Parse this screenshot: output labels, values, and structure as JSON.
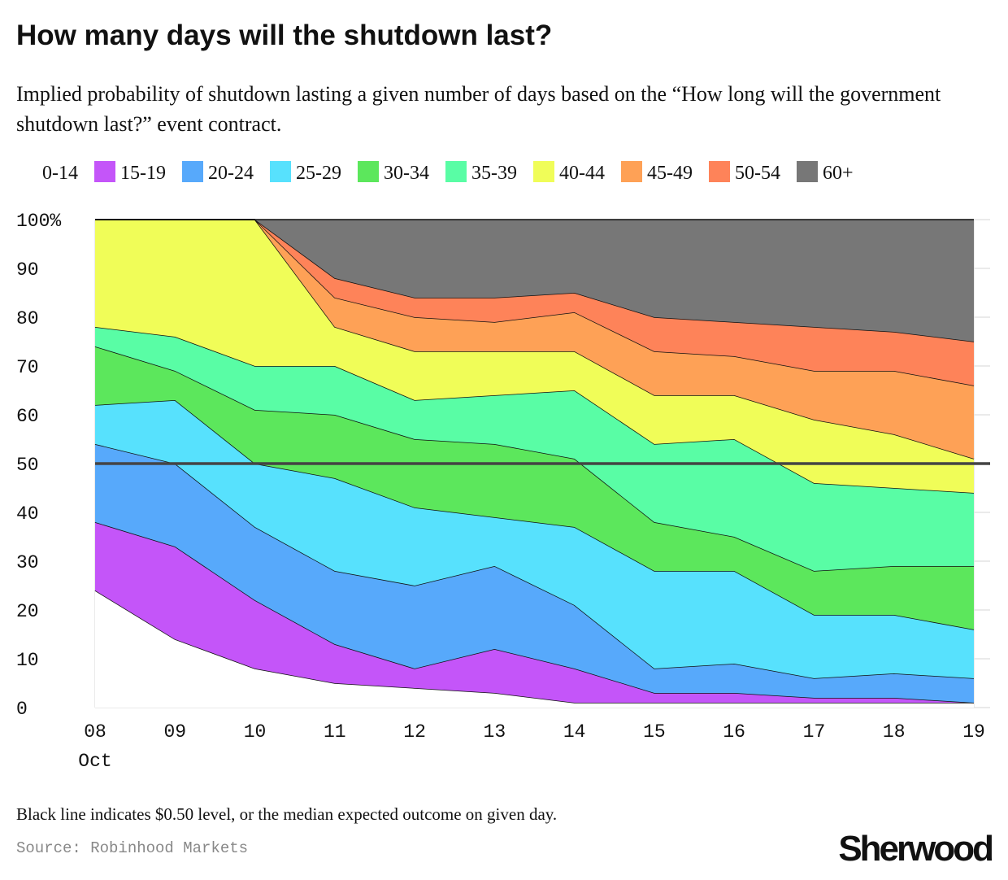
{
  "chart_data": {
    "type": "stacked-area",
    "title": "How many days will the shutdown last?",
    "subtitle": "Implied probability of shutdown lasting a given number of days based on the “How long will the government shutdown last?” event contract.",
    "categories": [
      "08",
      "09",
      "10",
      "11",
      "12",
      "13",
      "14",
      "15",
      "16",
      "17",
      "18",
      "19"
    ],
    "x_sublabel": "Oct",
    "series": [
      {
        "name": "0-14",
        "color": "#ffffff",
        "values": [
          24,
          14,
          8,
          5,
          4,
          3,
          1,
          1,
          1,
          1,
          1,
          1
        ]
      },
      {
        "name": "15-19",
        "color": "#c455f9",
        "values": [
          14,
          19,
          14,
          8,
          4,
          9,
          7,
          2,
          2,
          1,
          1,
          0
        ]
      },
      {
        "name": "20-24",
        "color": "#57a9fb",
        "values": [
          16,
          17,
          15,
          15,
          17,
          17,
          13,
          5,
          6,
          4,
          5,
          5
        ]
      },
      {
        "name": "25-29",
        "color": "#57e1fd",
        "values": [
          8,
          13,
          13,
          19,
          16,
          10,
          16,
          20,
          19,
          13,
          12,
          10
        ]
      },
      {
        "name": "30-34",
        "color": "#5ce75c",
        "values": [
          12,
          6,
          11,
          13,
          14,
          15,
          14,
          10,
          7,
          9,
          10,
          13
        ]
      },
      {
        "name": "35-39",
        "color": "#59fda5",
        "values": [
          4,
          7,
          9,
          10,
          8,
          10,
          14,
          16,
          20,
          18,
          16,
          15
        ]
      },
      {
        "name": "40-44",
        "color": "#f0fd58",
        "values": [
          22,
          24,
          30,
          8,
          10,
          9,
          8,
          10,
          9,
          13,
          11,
          7
        ]
      },
      {
        "name": "45-49",
        "color": "#fea156",
        "values": [
          0,
          0,
          0,
          6,
          7,
          6,
          8,
          9,
          8,
          10,
          13,
          15
        ]
      },
      {
        "name": "50-54",
        "color": "#fe8359",
        "values": [
          0,
          0,
          0,
          4,
          4,
          5,
          4,
          7,
          7,
          9,
          8,
          9
        ]
      },
      {
        "name": "60+",
        "color": "#777777",
        "values": [
          0,
          0,
          0,
          12,
          16,
          16,
          15,
          20,
          21,
          22,
          23,
          25
        ]
      }
    ],
    "ylim": [
      0,
      100
    ],
    "yticks": [
      0,
      10,
      20,
      30,
      40,
      50,
      60,
      70,
      80,
      90,
      {
        "value": 100,
        "label": "100%"
      }
    ],
    "grid": true,
    "reference_line": 50,
    "note": "Black line indicates $0.50 level, or the median expected outcome on given day.",
    "source": "Source: Robinhood Markets",
    "brand": "Sherwood"
  }
}
